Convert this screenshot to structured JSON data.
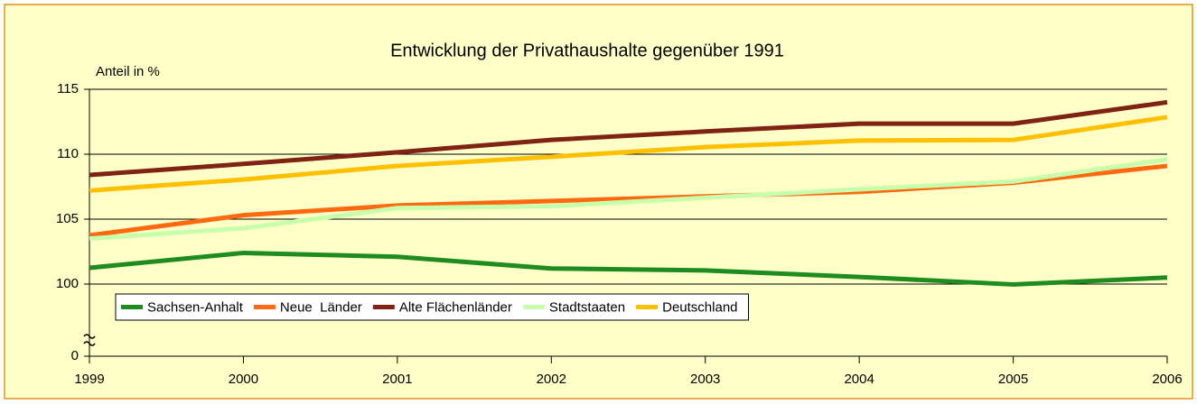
{
  "chart_data": {
    "type": "line",
    "title": "Entwicklung der Privathaushalte gegenüber 1991",
    "y_label": "Anteil in %",
    "categories": [
      "1999",
      "2000",
      "2001",
      "2002",
      "2003",
      "2004",
      "2005",
      "2006"
    ],
    "series": [
      {
        "name": "Sachsen-Anhalt",
        "color": "#1e8c1e",
        "values": [
          101.25,
          102.4,
          102.1,
          101.2,
          101.05,
          100.55,
          99.45,
          100.5
        ]
      },
      {
        "name": "Neue  Länder",
        "color": "#ff6a10",
        "values": [
          103.75,
          105.3,
          106.05,
          106.4,
          106.75,
          107.1,
          107.8,
          109.1
        ]
      },
      {
        "name": "Alte Flächenländer",
        "color": "#7f2315",
        "values": [
          108.4,
          109.25,
          110.15,
          111.1,
          111.75,
          112.35,
          112.35,
          114.0
        ]
      },
      {
        "name": "Stadtstaaten",
        "color": "#c8ffaa",
        "values": [
          103.5,
          104.3,
          105.85,
          106.0,
          106.65,
          107.3,
          107.9,
          109.6
        ]
      },
      {
        "name": "Deutschland",
        "color": "#ffc000",
        "values": [
          107.2,
          108.05,
          109.1,
          109.8,
          110.55,
          111.05,
          111.1,
          112.85
        ]
      }
    ],
    "ylim": [
      0,
      115
    ],
    "yticks": [
      0,
      100,
      105,
      110,
      115
    ],
    "axis_break": true,
    "grid": true,
    "legend": "bottom-left"
  }
}
